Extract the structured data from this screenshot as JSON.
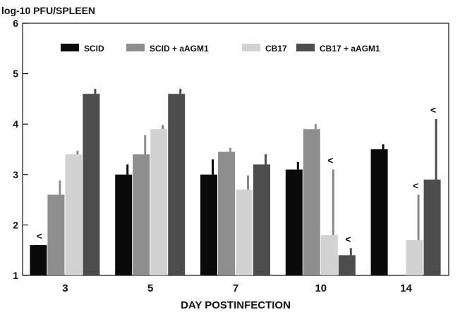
{
  "chart_data": {
    "type": "bar",
    "ylabel": "log-10 PFU/SPLEEN",
    "xlabel": "DAY POSTINFECTION",
    "ylim": [
      1,
      6
    ],
    "yticks": [
      1,
      2,
      3,
      4,
      5,
      6
    ],
    "categories": [
      "3",
      "5",
      "7",
      "10",
      "14"
    ],
    "legend_position": "top",
    "series": [
      {
        "name": "SCID",
        "color": "#0a0a0a",
        "values": [
          1.6,
          3.0,
          3.0,
          3.1,
          3.5
        ],
        "errors": [
          0,
          0.2,
          0.3,
          0.15,
          0.1
        ]
      },
      {
        "name": "SCID + aAGM1",
        "color": "#8e8e8e",
        "values": [
          2.6,
          3.4,
          3.45,
          3.9,
          null
        ],
        "errors": [
          0.28,
          0.38,
          0.08,
          0.1,
          0
        ]
      },
      {
        "name": "CB17",
        "color": "#d2d2d2",
        "values": [
          3.4,
          3.9,
          2.7,
          1.8,
          1.7
        ],
        "errors": [
          0.07,
          0.08,
          0.28,
          1.3,
          0.9
        ]
      },
      {
        "name": "CB17 + aAGM1",
        "color": "#4d4d4d",
        "values": [
          4.6,
          4.6,
          3.2,
          1.4,
          2.9
        ],
        "errors": [
          0.1,
          0.1,
          0.2,
          0.14,
          1.2
        ]
      }
    ],
    "annotations": [
      {
        "text": "<",
        "category": "3",
        "series": "SCID"
      },
      {
        "text": "<",
        "category": "10",
        "series": "CB17"
      },
      {
        "text": "<",
        "category": "10",
        "series": "CB17 + aAGM1"
      },
      {
        "text": "<",
        "category": "14",
        "series": "CB17"
      },
      {
        "text": "<",
        "category": "14",
        "series": "CB17 + aAGM1"
      }
    ]
  }
}
